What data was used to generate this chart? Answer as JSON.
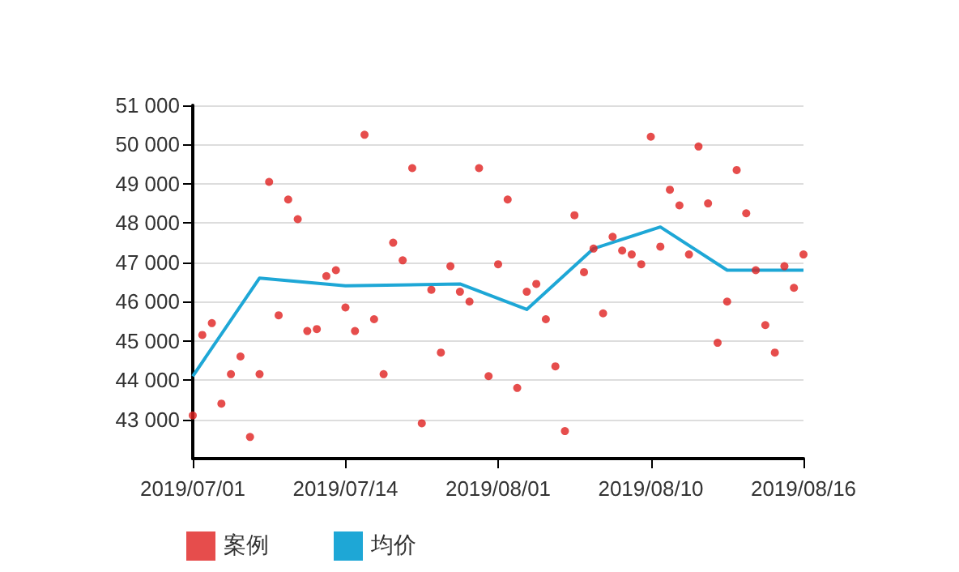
{
  "chart_data": {
    "type": "scatter",
    "legend": "bottom",
    "grid": "y",
    "marker": "circle",
    "categories": [
      "2019/07/01",
      null,
      null,
      null,
      null,
      null,
      null,
      null,
      null,
      null,
      null,
      null,
      null,
      null,
      null,
      null,
      "2019/07/14",
      null,
      null,
      null,
      null,
      null,
      null,
      null,
      null,
      null,
      null,
      null,
      null,
      null,
      null,
      null,
      "2019/08/01",
      null,
      null,
      null,
      null,
      null,
      null,
      null,
      null,
      null,
      null,
      null,
      null,
      null,
      null,
      null,
      "2019/08/10",
      null,
      null,
      null,
      null,
      null,
      null,
      null,
      null,
      null,
      null,
      null,
      null,
      null,
      null,
      null,
      "2019/08/16"
    ],
    "ylim": [
      42000,
      51000
    ],
    "yticks": [
      {
        "value": 43000,
        "label": "43 000"
      },
      {
        "value": 44000,
        "label": "44 000"
      },
      {
        "value": 45000,
        "label": "45 000"
      },
      {
        "value": 46000,
        "label": "46 000"
      },
      {
        "value": 47000,
        "label": "47 000"
      },
      {
        "value": 48000,
        "label": "48 000"
      },
      {
        "value": 49000,
        "label": "49 000"
      },
      {
        "value": 50000,
        "label": "50 000"
      },
      {
        "value": 51000,
        "label": "51 000"
      }
    ],
    "series": [
      {
        "name": "案例",
        "color": "#e0211f",
        "values": [
          43100,
          45150,
          45450,
          43400,
          44150,
          44600,
          42550,
          44150,
          49050,
          45650,
          48600,
          48100,
          45250,
          45300,
          46650,
          46800,
          45850,
          45250,
          50250,
          45550,
          44150,
          47500,
          47050,
          49400,
          42900,
          46300,
          44700,
          46900,
          46250,
          46000,
          49400,
          44100,
          46950,
          48600,
          43800,
          46250,
          46450,
          45550,
          44350,
          42700,
          48200,
          46750,
          47350,
          45700,
          47650,
          47300,
          47200,
          46950,
          50200,
          47400,
          48850,
          48450,
          47200,
          49950,
          48500,
          44950,
          46000,
          49350,
          48250,
          46800,
          45400,
          44700,
          46900,
          46350,
          47200
        ]
      },
      {
        "name": "均价",
        "type": "line",
        "color": "#1ea7d6",
        "marker": "none",
        "values": [
          44100,
          null,
          null,
          null,
          null,
          null,
          null,
          46600,
          null,
          null,
          null,
          null,
          null,
          null,
          null,
          null,
          46400,
          null,
          null,
          null,
          null,
          null,
          null,
          null,
          null,
          null,
          null,
          null,
          46450,
          null,
          null,
          null,
          null,
          null,
          null,
          45800,
          null,
          null,
          null,
          null,
          null,
          null,
          47350,
          null,
          null,
          null,
          null,
          null,
          null,
          47900,
          null,
          null,
          null,
          null,
          null,
          null,
          46800,
          null,
          null,
          null,
          null,
          null,
          null,
          null,
          46800
        ]
      }
    ]
  }
}
